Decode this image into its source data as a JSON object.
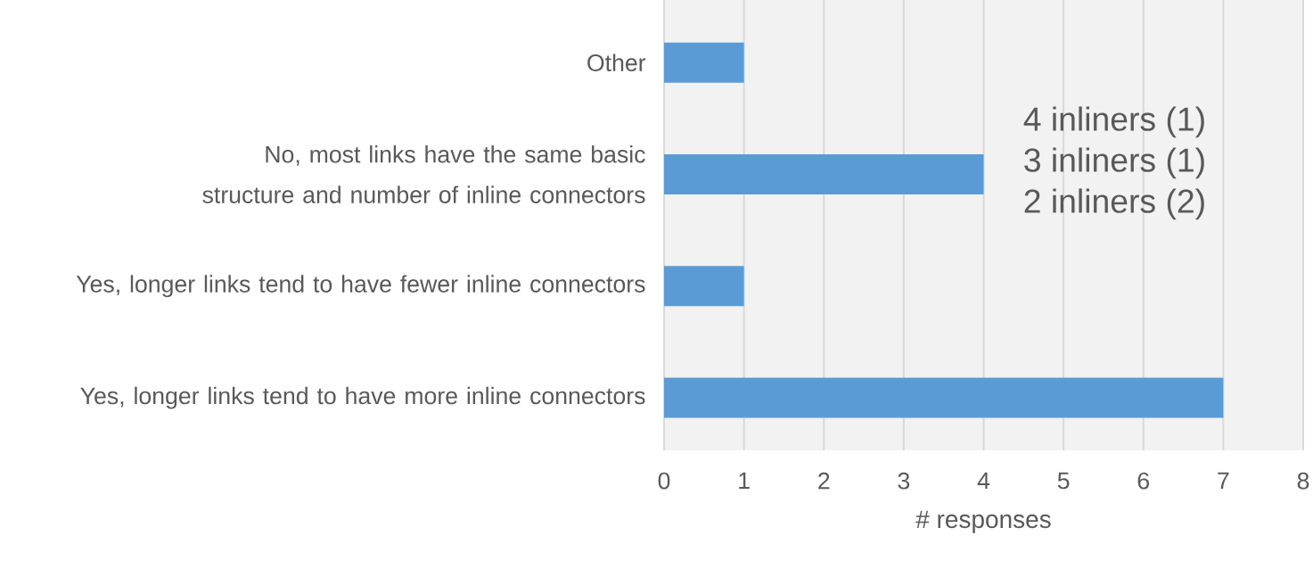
{
  "chart_data": {
    "type": "bar",
    "orientation": "horizontal",
    "categories": [
      "Other",
      "No, most links have the same basic structure and number of inline connectors",
      "Yes, longer links tend to have fewer inline connectors",
      "Yes, longer links tend to have more inline connectors"
    ],
    "values": [
      1,
      4,
      1,
      7
    ],
    "color": "#5b9bd5",
    "xlim": [
      0,
      8
    ],
    "xticks": [
      0,
      1,
      2,
      3,
      4,
      5,
      6,
      7,
      8
    ],
    "grid": "x",
    "xlabel": "# responses",
    "annotations": [
      "4 inliners (1)",
      "3 inliners (1)",
      "2 inliners (2)"
    ]
  }
}
